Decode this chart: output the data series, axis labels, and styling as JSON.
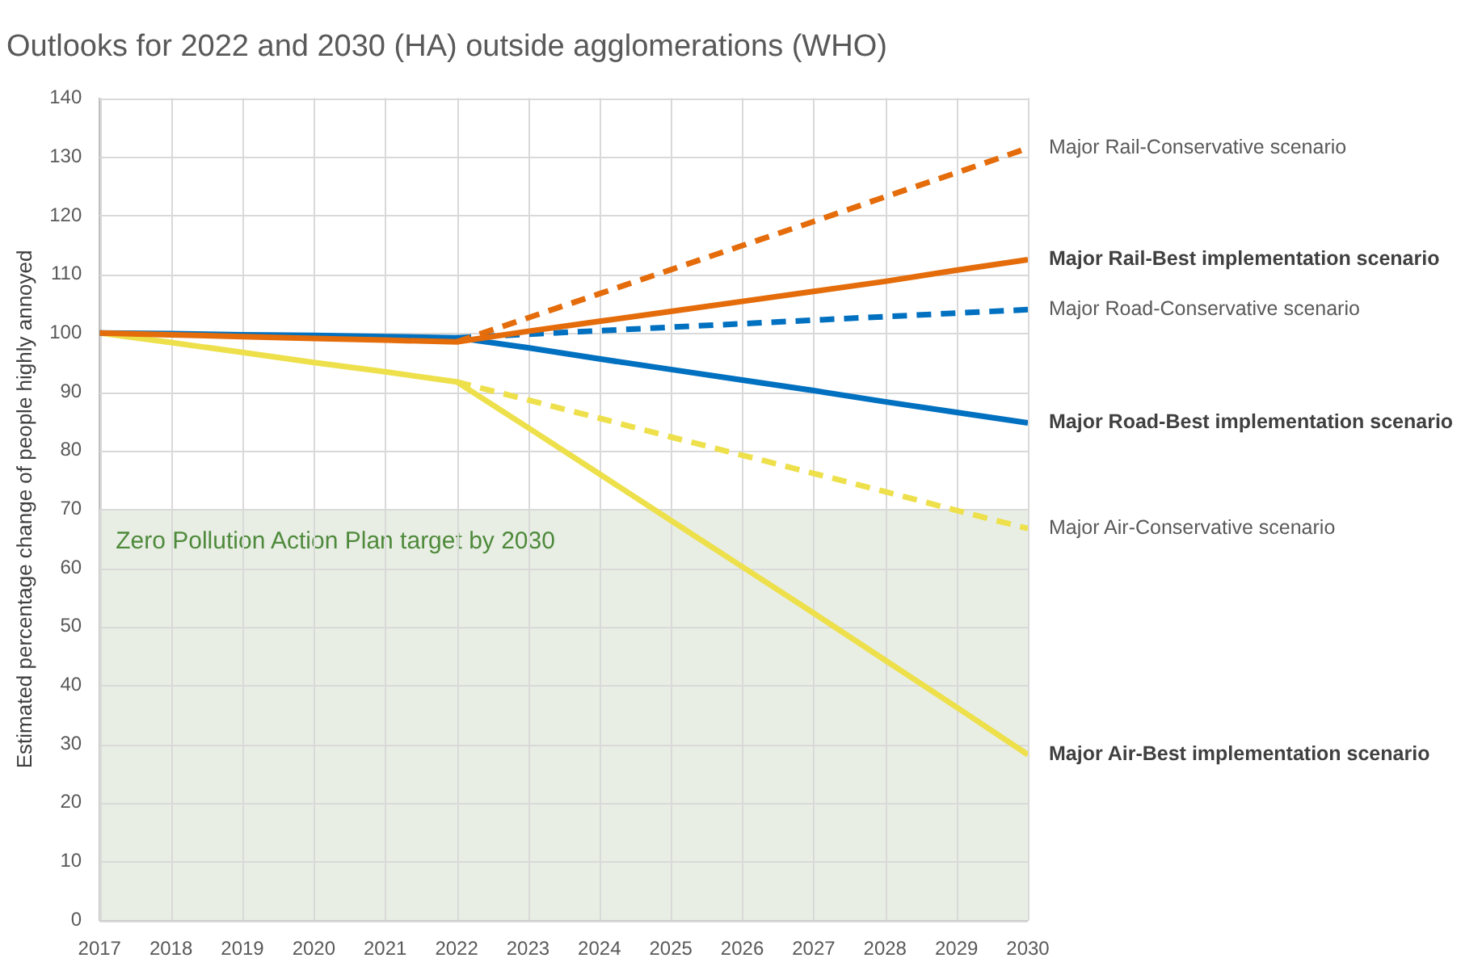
{
  "chart_data": {
    "type": "line",
    "title": "Outlooks for 2022 and 2030 (HA) outside agglomerations (WHO)",
    "ylabel": "Estimated percentage change of people highly annoyed",
    "xlim": [
      2017,
      2030
    ],
    "xticks": [
      2017,
      2018,
      2019,
      2020,
      2021,
      2022,
      2023,
      2024,
      2025,
      2026,
      2027,
      2028,
      2029,
      2030
    ],
    "ylim": [
      0,
      140
    ],
    "yticks": [
      0,
      10,
      20,
      30,
      40,
      50,
      60,
      70,
      80,
      90,
      100,
      110,
      120,
      130,
      140
    ],
    "grid": true,
    "legend": false,
    "marker": "none",
    "bands": [
      {
        "axis": "y",
        "from": 0,
        "to": 70,
        "label": "Zero Pollution Action Plan target by 2030",
        "color": "#e8eee4"
      }
    ],
    "series": [
      {
        "name": "Major Rail-Conservative scenario",
        "color": "#e46c0a",
        "line_style": "dashed",
        "x": [
          2022,
          2023,
          2024,
          2025,
          2026,
          2027,
          2028,
          2029,
          2030
        ],
        "values": [
          98.5,
          102.6,
          106.7,
          110.8,
          114.9,
          119,
          123.2,
          127.3,
          131.5
        ]
      },
      {
        "name": "Major Rail-Best implementation scenario",
        "color": "#e46c0a",
        "line_style": "solid",
        "x": [
          2017,
          2018,
          2019,
          2020,
          2021,
          2022,
          2023,
          2024,
          2025,
          2026,
          2027,
          2028,
          2029,
          2030
        ],
        "values": [
          100,
          99.7,
          99.4,
          99.1,
          98.8,
          98.5,
          100.3,
          102,
          103.7,
          105.4,
          107.1,
          108.8,
          110.7,
          112.5
        ]
      },
      {
        "name": "Major Road-Conservative scenario",
        "color": "#0070c0",
        "line_style": "dashed",
        "x": [
          2022,
          2023,
          2024,
          2025,
          2026,
          2027,
          2028,
          2029,
          2030
        ],
        "values": [
          99.2,
          99.8,
          100.4,
          101,
          101.6,
          102.2,
          102.8,
          103.4,
          104
        ]
      },
      {
        "name": "Major Road-Best implementation scenario",
        "color": "#0070c0",
        "line_style": "solid",
        "x": [
          2017,
          2018,
          2019,
          2020,
          2021,
          2022,
          2023,
          2024,
          2025,
          2026,
          2027,
          2028,
          2029,
          2030
        ],
        "values": [
          100,
          99.9,
          99.7,
          99.6,
          99.4,
          99.2,
          97.5,
          95.6,
          93.8,
          92,
          90.2,
          88.3,
          86.5,
          84.7
        ]
      },
      {
        "name": "Major Air-Conservative scenario",
        "color": "#ede04b",
        "line_style": "dashed",
        "x": [
          2022,
          2023,
          2024,
          2025,
          2026,
          2027,
          2028,
          2029,
          2030
        ],
        "values": [
          91.7,
          88.6,
          85.5,
          82.3,
          79.2,
          76.1,
          73,
          69.8,
          66.7
        ]
      },
      {
        "name": "Major Air-Best implementation scenario",
        "color": "#ede04b",
        "line_style": "solid",
        "x": [
          2017,
          2018,
          2019,
          2020,
          2021,
          2022,
          2023,
          2024,
          2025,
          2026,
          2027,
          2028,
          2029,
          2030
        ],
        "values": [
          100,
          98.4,
          96.7,
          95,
          93.4,
          91.7,
          83.9,
          76,
          68.1,
          60.2,
          52.3,
          44.3,
          36.3,
          28.2
        ]
      }
    ]
  }
}
